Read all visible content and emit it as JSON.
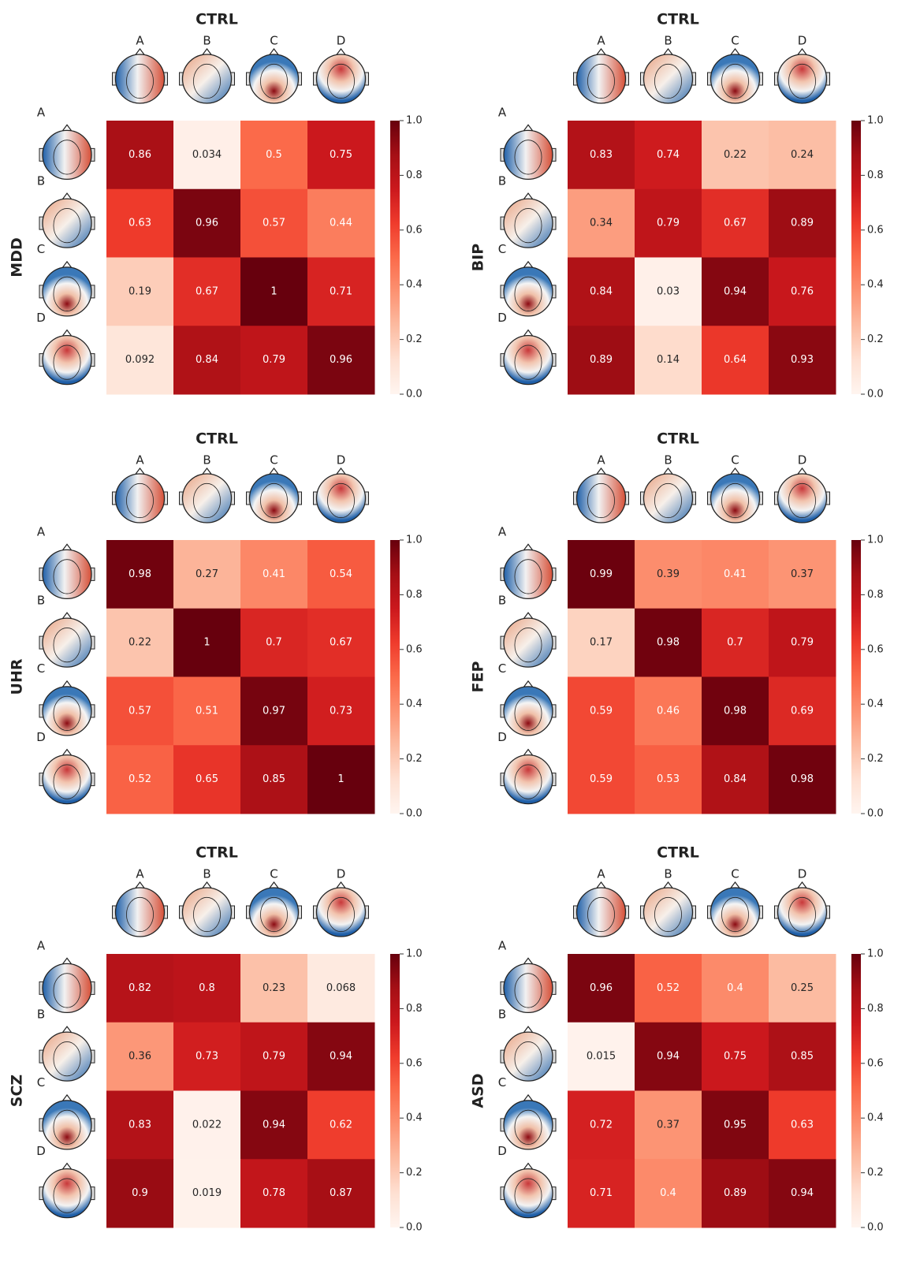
{
  "chart_data": [
    {
      "type": "heatmap",
      "title": "CTRL",
      "ylabel": "MDD",
      "x_categories": [
        "A",
        "B",
        "C",
        "D"
      ],
      "y_categories": [
        "A",
        "B",
        "C",
        "D"
      ],
      "values": [
        [
          0.86,
          0.034,
          0.5,
          0.75
        ],
        [
          0.63,
          0.96,
          0.57,
          0.44
        ],
        [
          0.19,
          0.67,
          1,
          0.71
        ],
        [
          0.092,
          0.84,
          0.79,
          0.96
        ]
      ],
      "zlim": [
        0,
        1
      ],
      "zticks": [
        {
          "value": 0,
          "label": "0.0"
        },
        0.2,
        0.4,
        0.6,
        0.8,
        {
          "value": 1,
          "label": "1.0"
        }
      ],
      "colormap": "Reds"
    },
    {
      "type": "heatmap",
      "title": "CTRL",
      "ylabel": "BIP",
      "x_categories": [
        "A",
        "B",
        "C",
        "D"
      ],
      "y_categories": [
        "A",
        "B",
        "C",
        "D"
      ],
      "values": [
        [
          0.83,
          0.74,
          0.22,
          0.24
        ],
        [
          0.34,
          0.79,
          0.67,
          0.89
        ],
        [
          0.84,
          0.03,
          0.94,
          0.76
        ],
        [
          0.89,
          0.14,
          0.64,
          0.93
        ]
      ],
      "zlim": [
        0,
        1
      ],
      "zticks": [
        {
          "value": 0,
          "label": "0.0"
        },
        0.2,
        0.4,
        0.6,
        0.8,
        {
          "value": 1,
          "label": "1.0"
        }
      ],
      "colormap": "Reds"
    },
    {
      "type": "heatmap",
      "title": "CTRL",
      "ylabel": "UHR",
      "x_categories": [
        "A",
        "B",
        "C",
        "D"
      ],
      "y_categories": [
        "A",
        "B",
        "C",
        "D"
      ],
      "values": [
        [
          0.98,
          0.27,
          0.41,
          0.54
        ],
        [
          0.22,
          1,
          0.7,
          0.67
        ],
        [
          0.57,
          0.51,
          0.97,
          0.73
        ],
        [
          0.52,
          0.65,
          0.85,
          1
        ]
      ],
      "zlim": [
        0,
        1
      ],
      "zticks": [
        {
          "value": 0,
          "label": "0.0"
        },
        0.2,
        0.4,
        0.6,
        0.8,
        {
          "value": 1,
          "label": "1.0"
        }
      ],
      "colormap": "Reds"
    },
    {
      "type": "heatmap",
      "title": "CTRL",
      "ylabel": "FEP",
      "x_categories": [
        "A",
        "B",
        "C",
        "D"
      ],
      "y_categories": [
        "A",
        "B",
        "C",
        "D"
      ],
      "values": [
        [
          0.99,
          0.39,
          0.41,
          0.37
        ],
        [
          0.17,
          0.98,
          0.7,
          0.79
        ],
        [
          0.59,
          0.46,
          0.98,
          0.69
        ],
        [
          0.59,
          0.53,
          0.84,
          0.98
        ]
      ],
      "zlim": [
        0,
        1
      ],
      "zticks": [
        {
          "value": 0,
          "label": "0.0"
        },
        0.2,
        0.4,
        0.6,
        0.8,
        {
          "value": 1,
          "label": "1.0"
        }
      ],
      "colormap": "Reds"
    },
    {
      "type": "heatmap",
      "title": "CTRL",
      "ylabel": "SCZ",
      "x_categories": [
        "A",
        "B",
        "C",
        "D"
      ],
      "y_categories": [
        "A",
        "B",
        "C",
        "D"
      ],
      "values": [
        [
          0.82,
          0.8,
          0.23,
          0.068
        ],
        [
          0.36,
          0.73,
          0.79,
          0.94
        ],
        [
          0.83,
          0.022,
          0.94,
          0.62
        ],
        [
          0.9,
          0.019,
          0.78,
          0.87
        ]
      ],
      "zlim": [
        0,
        1
      ],
      "zticks": [
        {
          "value": 0,
          "label": "0.0"
        },
        0.2,
        0.4,
        0.6,
        0.8,
        {
          "value": 1,
          "label": "1.0"
        }
      ],
      "colormap": "Reds"
    },
    {
      "type": "heatmap",
      "title": "CTRL",
      "ylabel": "ASD",
      "x_categories": [
        "A",
        "B",
        "C",
        "D"
      ],
      "y_categories": [
        "A",
        "B",
        "C",
        "D"
      ],
      "values": [
        [
          0.96,
          0.52,
          0.4,
          0.25
        ],
        [
          0.015,
          0.94,
          0.75,
          0.85
        ],
        [
          0.72,
          0.37,
          0.95,
          0.63
        ],
        [
          0.71,
          0.4,
          0.89,
          0.94
        ]
      ],
      "zlim": [
        0,
        1
      ],
      "zticks": [
        {
          "value": 0,
          "label": "0.0"
        },
        0.2,
        0.4,
        0.6,
        0.8,
        {
          "value": 1,
          "label": "1.0"
        }
      ],
      "colormap": "Reds"
    }
  ]
}
